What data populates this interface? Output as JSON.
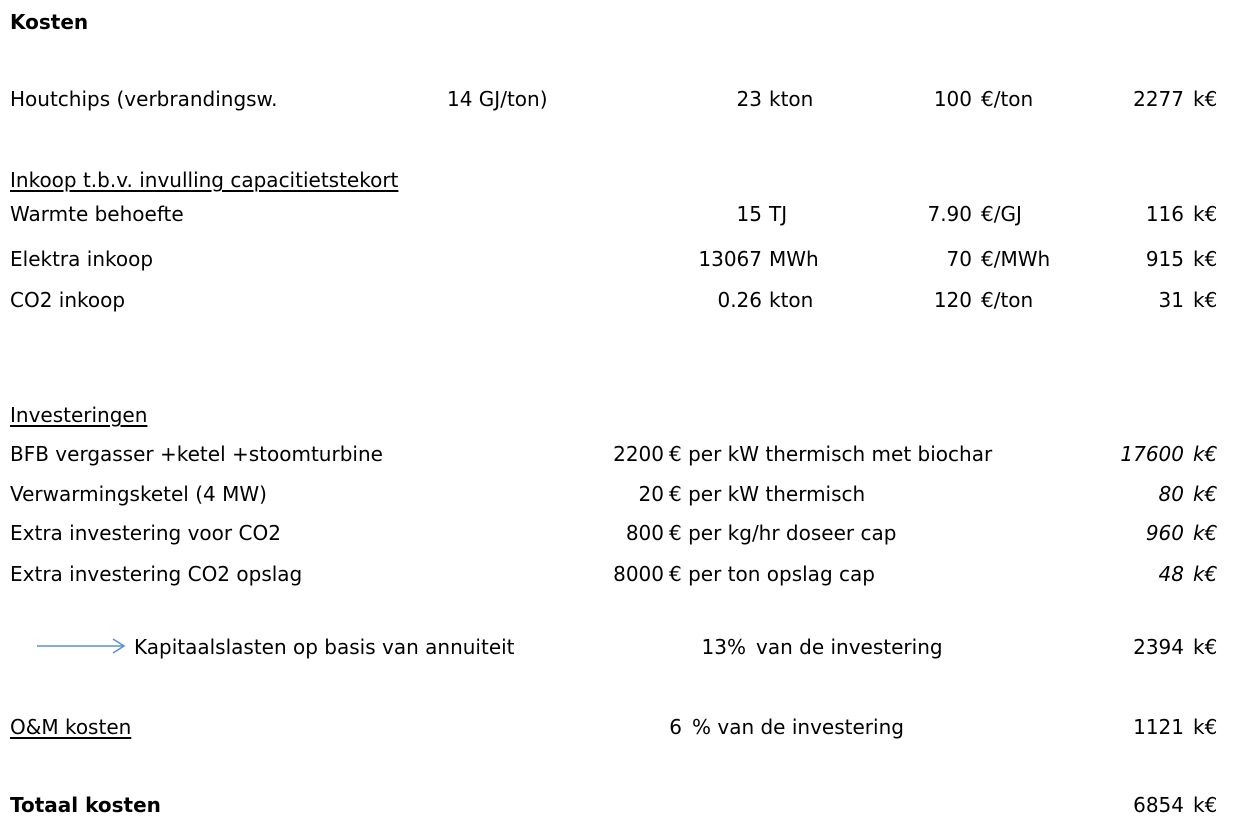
{
  "heading": "Kosten",
  "fuel": {
    "label": "Houtchips (verbrandingsw.",
    "calorific": "14 GJ/ton)",
    "qty": "23",
    "qty_unit": "kton",
    "price": "100",
    "price_unit": "€/ton",
    "total": "2277",
    "total_unit": "k€"
  },
  "purchase": {
    "title": "Inkoop t.b.v. invulling capacitietstekort",
    "rows": [
      {
        "label": "Warmte behoefte",
        "qty": "15",
        "qty_unit": "TJ",
        "price": "7.90",
        "price_unit": "€/GJ",
        "total": "116",
        "total_unit": "k€"
      },
      {
        "label": "Elektra inkoop",
        "qty": "13067",
        "qty_unit": "MWh",
        "price": "70",
        "price_unit": "€/MWh",
        "total": "915",
        "total_unit": "k€"
      },
      {
        "label": "CO2 inkoop",
        "qty": "0.26",
        "qty_unit": "kton",
        "price": "120",
        "price_unit": "€/ton",
        "total": "31",
        "total_unit": "k€"
      }
    ]
  },
  "investments": {
    "title": "Investeringen",
    "rows": [
      {
        "label": "BFB vergasser +ketel +stoomturbine",
        "value": "2200",
        "desc": "€ per kW thermisch met biochar",
        "total": "17600",
        "total_unit": "k€"
      },
      {
        "label": "Verwarmingsketel (4 MW)",
        "value": "20",
        "desc": "€ per kW thermisch",
        "total": "80",
        "total_unit": "k€"
      },
      {
        "label": "Extra investering voor CO2",
        "value": "800",
        "desc": "€ per kg/hr doseer cap",
        "total": "960",
        "total_unit": "k€"
      },
      {
        "label": "Extra investering  CO2 opslag",
        "value": "8000",
        "desc": "€ per ton opslag cap",
        "total": "48",
        "total_unit": "k€"
      }
    ]
  },
  "capital": {
    "icon": "right-arrow",
    "label": "Kapitaalslasten op basis van annuiteit",
    "pct": "13%",
    "desc": "van de investering",
    "total": "2394",
    "total_unit": "k€"
  },
  "om": {
    "label": "O&M kosten",
    "value": "6",
    "desc": "% van de investering",
    "total": "1121",
    "total_unit": "k€"
  },
  "grand_total": {
    "label": "Totaal kosten",
    "total": "6854",
    "total_unit": "k€"
  },
  "colors": {
    "arrow": "#5b8ed6",
    "text": "#000000"
  }
}
